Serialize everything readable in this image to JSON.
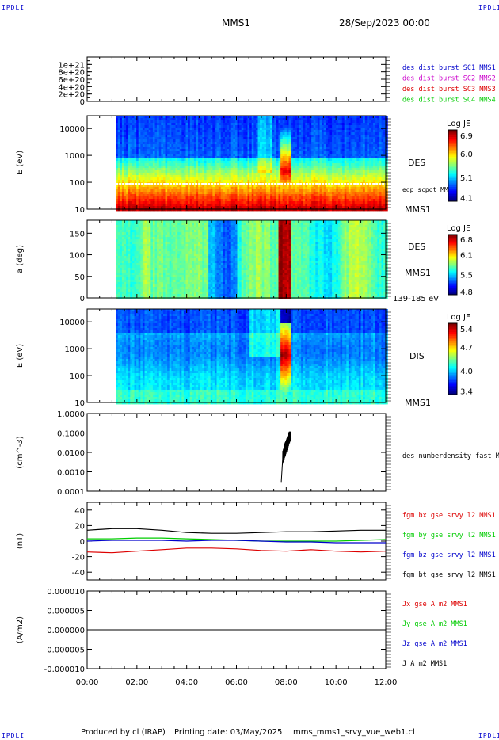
{
  "header": {
    "corner_label": "IPDLI",
    "spacecraft": "MMS1",
    "date": "28/Sep/2023 00:00"
  },
  "footer": {
    "credit": "Produced by cl (IRAP)",
    "printing": "Printing date: 03/May/2025",
    "file": "mms_mms1_srvy_vue_web1.cl"
  },
  "colors": {
    "red": "#dd0000",
    "green": "#00cc00",
    "blue": "#0000cc",
    "magenta": "#cc00cc",
    "black": "#000000"
  },
  "chart_data": [
    {
      "type": "line",
      "ylabel": "",
      "y_ticks": [
        "1e+21",
        "8e+20",
        "6e+20",
        "4e+20",
        "2e+20",
        "0"
      ],
      "ylim": [
        0,
        1.2e+21
      ],
      "legend": [
        {
          "text": "des dist burst SC1 MMS1",
          "color": "#0000cc"
        },
        {
          "text": "des dist burst SC2 MMS2",
          "color": "#cc00cc"
        },
        {
          "text": "des dist burst SC3 MMS3",
          "color": "#dd0000"
        },
        {
          "text": "des dist burst SC4 MMS4",
          "color": "#00cc00"
        }
      ],
      "series": [
        {
          "values_x": [
            0,
            12
          ],
          "values_y": [
            0,
            0
          ],
          "style": "dashed"
        }
      ]
    },
    {
      "type": "heatmap",
      "ylabel": "E (eV)",
      "y_scale": "log",
      "y_ticks": [
        "10000",
        "1000",
        "100",
        "10"
      ],
      "ylim": [
        10,
        30000
      ],
      "data_start_hour": 1.15,
      "instrument": "DES",
      "spacecraft": "MMS1",
      "overlay_label": "edp scpot MMS1",
      "colorbar": {
        "title": "Log JE",
        "ticks": [
          "6.9",
          "6.0",
          "5.1",
          "4.1"
        ],
        "range": [
          4.1,
          6.9
        ]
      },
      "hot_interval_hours": [
        7.7,
        8.15
      ]
    },
    {
      "type": "heatmap",
      "ylabel": "a (deg)",
      "y_ticks": [
        "150",
        "100",
        "50",
        "0"
      ],
      "ylim": [
        0,
        180
      ],
      "data_start_hour": 1.15,
      "instrument": "DES",
      "spacecraft": "MMS1",
      "energy_range": "139-185 eV",
      "colorbar": {
        "title": "Log JE",
        "ticks": [
          "6.8",
          "6.1",
          "5.5",
          "4.8"
        ],
        "range": [
          4.8,
          6.8
        ]
      },
      "hot_interval_hours": [
        7.65,
        8.15
      ]
    },
    {
      "type": "heatmap",
      "ylabel": "E (eV)",
      "y_scale": "log",
      "y_ticks": [
        "10000",
        "1000",
        "100",
        "10"
      ],
      "ylim": [
        10,
        30000
      ],
      "data_start_hour": 1.15,
      "instrument": "DIS",
      "spacecraft": "MMS1",
      "colorbar": {
        "title": "Log JE",
        "ticks": [
          "5.4",
          "4.7",
          "4.0",
          "3.4"
        ],
        "range": [
          3.4,
          5.4
        ]
      },
      "hot_interval_hours": [
        7.75,
        8.15
      ]
    },
    {
      "type": "line",
      "ylabel": "(cm^-3)",
      "y_scale": "log",
      "y_ticks": [
        "1.0000",
        "0.1000",
        "0.0100",
        "0.0010",
        "0.0001"
      ],
      "ylim": [
        0.0001,
        1.0
      ],
      "legend": [
        {
          "text": "des numberdensity fast M",
          "color": "#000000"
        }
      ],
      "series": [
        {
          "name": "des numberdensity fast M",
          "x": [
            7.8,
            7.85,
            7.9,
            7.95,
            8.0,
            8.05,
            8.1,
            8.15,
            8.2
          ],
          "y": [
            0.0003,
            0.003,
            0.012,
            0.03,
            0.04,
            0.06,
            0.08,
            0.1,
            0.05
          ]
        }
      ]
    },
    {
      "type": "line",
      "ylabel": "(nT)",
      "y_ticks": [
        "40",
        "20",
        "0",
        "-20",
        "-40"
      ],
      "ylim": [
        -50,
        50
      ],
      "legend": [
        {
          "text": "fgm bx gse srvy l2 MMS1",
          "color": "#dd0000"
        },
        {
          "text": "fgm by gse srvy l2 MMS1",
          "color": "#00cc00"
        },
        {
          "text": "fgm bz gse srvy l2 MMS1",
          "color": "#0000cc"
        },
        {
          "text": "fgm bt gse srvy l2 MMS1",
          "color": "#000000"
        }
      ],
      "x": [
        0,
        1,
        2,
        3,
        4,
        5,
        6,
        7,
        8,
        9,
        10,
        11,
        12
      ],
      "series": [
        {
          "name": "fgm bx gse srvy l2 MMS1",
          "color": "#dd0000",
          "values": [
            -14,
            -15,
            -13,
            -11,
            -9,
            -9,
            -10,
            -12,
            -13,
            -11,
            -13,
            -14,
            -13
          ]
        },
        {
          "name": "fgm by gse srvy l2 MMS1",
          "color": "#00cc00",
          "values": [
            3,
            3,
            4,
            4,
            3,
            2,
            1,
            0,
            0,
            0,
            0,
            1,
            2
          ]
        },
        {
          "name": "fgm bz gse srvy l2 MMS1",
          "color": "#0000cc",
          "values": [
            0,
            1,
            1,
            1,
            0,
            1,
            1,
            0,
            -1,
            -1,
            -2,
            -2,
            -2
          ]
        },
        {
          "name": "fgm bt gse srvy l2 MMS1",
          "color": "#000000",
          "values": [
            14,
            16,
            16,
            14,
            11,
            10,
            10,
            11,
            12,
            12,
            13,
            14,
            14
          ]
        }
      ]
    },
    {
      "type": "line",
      "ylabel": "(A/m2)",
      "y_ticks": [
        "0.000010",
        "0.000005",
        "0.000000",
        "-0.000005",
        "-0.000010"
      ],
      "ylim": [
        -1e-05,
        1e-05
      ],
      "legend": [
        {
          "text": "Jx gse A m2 MMS1",
          "color": "#dd0000"
        },
        {
          "text": "Jy gse A m2 MMS1",
          "color": "#00cc00"
        },
        {
          "text": "Jz gse A m2 MMS1",
          "color": "#0000cc"
        },
        {
          "text": "J A m2 MMS1",
          "color": "#000000"
        }
      ],
      "series": [
        {
          "x": [
            0,
            12
          ],
          "y": [
            0,
            0
          ]
        }
      ]
    }
  ],
  "time_axis": {
    "xlim": [
      0,
      12
    ],
    "tick_labels": [
      "00:00",
      "02:00",
      "04:00",
      "06:00",
      "08:00",
      "10:00",
      "12:00"
    ]
  }
}
